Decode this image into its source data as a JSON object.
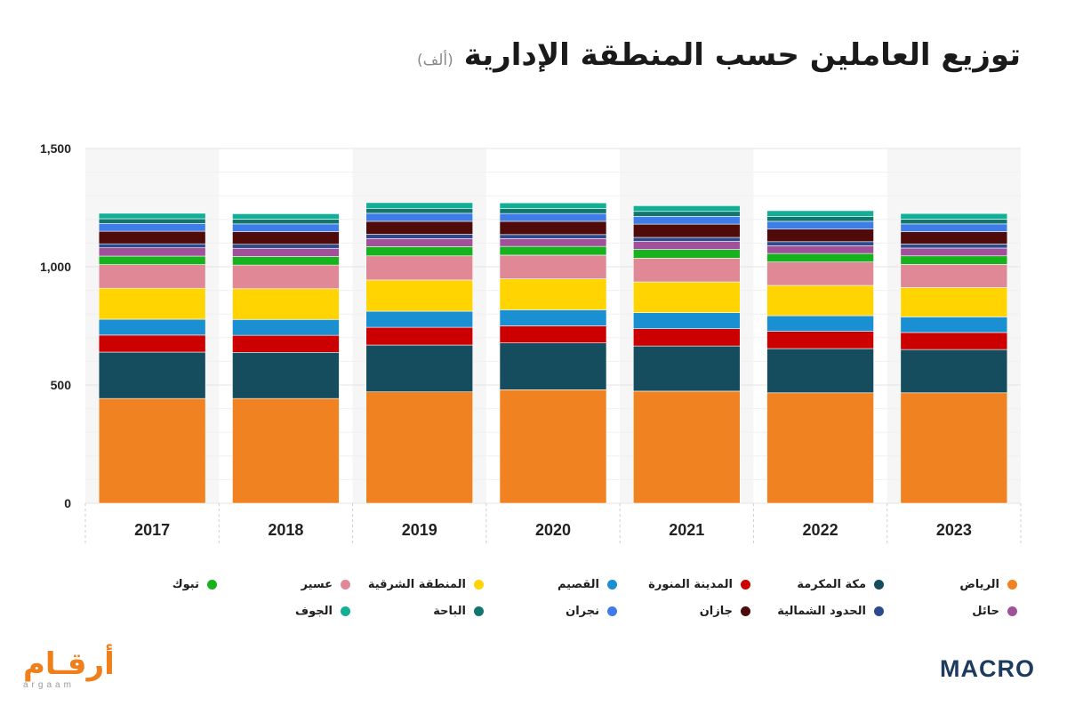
{
  "header": {
    "title": "توزيع العاملين حسب المنطقة الإدارية",
    "unit": "(ألف)"
  },
  "chart_data": {
    "type": "bar",
    "stacked": true,
    "title": "توزيع العاملين حسب المنطقة الإدارية",
    "unit": "(ألف)",
    "categories": [
      "2017",
      "2018",
      "2019",
      "2020",
      "2021",
      "2022",
      "2023"
    ],
    "ylim": [
      0,
      1500
    ],
    "yticks": [
      0,
      500,
      1000,
      1500
    ],
    "ytick_labels": [
      "0",
      "500",
      "1,000",
      "1,500"
    ],
    "legend_position": "bottom",
    "series": [
      {
        "name": "الرياض",
        "color": "#f08221",
        "values": [
          443,
          443,
          471,
          480,
          474,
          467,
          467
        ]
      },
      {
        "name": "مكة المكرمة",
        "color": "#164d5e",
        "values": [
          196,
          195,
          198,
          198,
          191,
          187,
          183
        ]
      },
      {
        "name": "المدينة المنورة",
        "color": "#cc0000",
        "values": [
          72,
          72,
          75,
          72,
          73,
          73,
          72
        ]
      },
      {
        "name": "القصيم",
        "color": "#1a8fd1",
        "values": [
          67,
          67,
          68,
          68,
          68,
          66,
          66
        ]
      },
      {
        "name": "المنطقة الشرقية",
        "color": "#ffd400",
        "values": [
          131,
          130,
          132,
          131,
          130,
          128,
          124
        ]
      },
      {
        "name": "عسير",
        "color": "#e08896",
        "values": [
          100,
          100,
          102,
          100,
          100,
          99,
          98
        ]
      },
      {
        "name": "تبوك",
        "color": "#17b31e",
        "values": [
          36,
          36,
          39,
          37,
          37,
          36,
          36
        ]
      },
      {
        "name": "حائل",
        "color": "#a0519a",
        "values": [
          35,
          35,
          34,
          33,
          34,
          33,
          33
        ]
      },
      {
        "name": "الحدود الشمالية",
        "color": "#2c4a8c",
        "values": [
          17,
          17,
          18,
          17,
          17,
          17,
          17
        ]
      },
      {
        "name": "جازان",
        "color": "#4f0a0a",
        "values": [
          53,
          53,
          55,
          56,
          56,
          53,
          52
        ]
      },
      {
        "name": "نجران",
        "color": "#3e7de8",
        "values": [
          33,
          33,
          34,
          33,
          33,
          33,
          33
        ]
      },
      {
        "name": "الباحة",
        "color": "#12766e",
        "values": [
          20,
          20,
          21,
          21,
          21,
          21,
          20
        ]
      },
      {
        "name": "الجوف",
        "color": "#12ae95",
        "values": [
          23,
          23,
          24,
          24,
          24,
          24,
          24
        ]
      }
    ]
  },
  "branding": {
    "argaam_ar": "أرقـام",
    "argaam_en": "argaam",
    "macro": "MACRO"
  }
}
